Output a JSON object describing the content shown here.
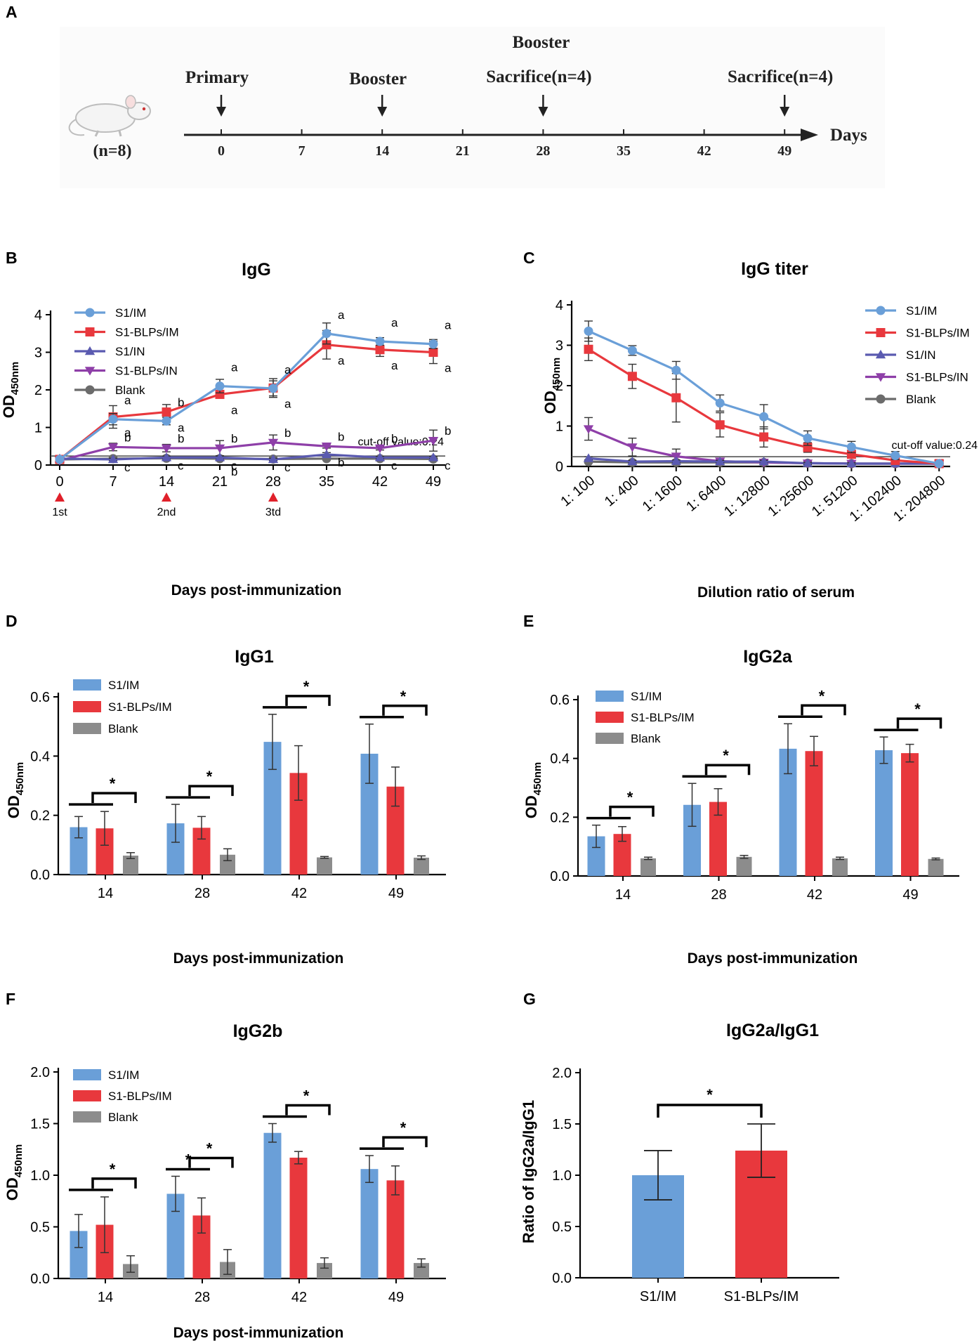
{
  "panels": {
    "A": "A",
    "B": "B",
    "C": "C",
    "D": "D",
    "E": "E",
    "F": "F",
    "G": "G"
  },
  "colors": {
    "s1_im": "#6a9fd8",
    "s1_blps_im": "#e8383d",
    "s1_in": "#5a5ab0",
    "s1_blps_in": "#8e3fa8",
    "blank": "#6b6b6b",
    "bar_blank": "#8c8c8c",
    "marker_red": "#e0202a"
  },
  "timeline": {
    "top_label": "Booster",
    "events": [
      {
        "label": "Primary",
        "day": 0
      },
      {
        "label": "Booster",
        "day": 14
      },
      {
        "label": "Sacrifice(n=4)",
        "day": 28
      },
      {
        "label": "Sacrifice(n=4)",
        "day": 49
      }
    ],
    "ticks": [
      "0",
      "7",
      "14",
      "21",
      "28",
      "35",
      "42",
      "49"
    ],
    "axis_label": "Days",
    "mouse_label": "(n=8)"
  },
  "chart_data": [
    {
      "id": "B",
      "type": "line",
      "title": "IgG",
      "xlabel": "Days  post-immunization",
      "ylabel_main": "OD",
      "ylabel_sub": "450nm",
      "categories": [
        "0",
        "7",
        "14",
        "21",
        "28",
        "35",
        "42",
        "49"
      ],
      "yticks": [
        "0",
        "1",
        "2",
        "3",
        "4"
      ],
      "ylim": [
        0,
        4
      ],
      "series": [
        {
          "name": "S1/IM",
          "color_key": "s1_im",
          "marker": "circle",
          "values": [
            0.15,
            1.22,
            1.17,
            2.1,
            2.04,
            3.5,
            3.29,
            3.22
          ],
          "errors": [
            0.03,
            0.15,
            0.1,
            0.18,
            0.2,
            0.28,
            0.1,
            0.12
          ],
          "letters": [
            "",
            "a",
            "b",
            "a",
            "a",
            "a",
            "a",
            "a"
          ]
        },
        {
          "name": "S1-BLPs/IM",
          "color_key": "s1_blps_im",
          "marker": "square",
          "values": [
            0.15,
            1.28,
            1.41,
            1.88,
            2.05,
            3.2,
            3.07,
            3.0
          ],
          "errors": [
            0.03,
            0.3,
            0.2,
            0.1,
            0.25,
            0.38,
            0.18,
            0.3
          ],
          "letters": [
            "",
            "a",
            "a",
            "a",
            "a",
            "a",
            "a",
            "a"
          ]
        },
        {
          "name": "S1/IN",
          "color_key": "s1_in",
          "marker": "triangle-up",
          "values": [
            0.17,
            0.15,
            0.2,
            0.2,
            0.15,
            0.28,
            0.2,
            0.2
          ],
          "errors": [
            0.02,
            0.03,
            0.04,
            0.04,
            0.03,
            0.05,
            0.03,
            0.03
          ],
          "letters": [
            "",
            "c",
            "c",
            "c",
            "c",
            "b",
            "c",
            "c"
          ]
        },
        {
          "name": "S1-BLPs/IN",
          "color_key": "s1_blps_in",
          "marker": "triangle-down",
          "values": [
            0.12,
            0.48,
            0.45,
            0.45,
            0.6,
            0.5,
            0.45,
            0.65
          ],
          "errors": [
            0.03,
            0.1,
            0.1,
            0.2,
            0.2,
            0.05,
            0.05,
            0.28
          ],
          "letters": [
            "",
            "b",
            "b",
            "b",
            "b",
            "b",
            "b",
            "b"
          ]
        },
        {
          "name": "Blank",
          "color_key": "blank",
          "marker": "circle",
          "values": [
            0.15,
            0.17,
            0.18,
            0.17,
            0.16,
            0.17,
            0.17,
            0.16
          ],
          "errors": [
            0.02,
            0.02,
            0.02,
            0.02,
            0.02,
            0.02,
            0.02,
            0.02
          ],
          "letters": [
            "",
            "",
            "",
            "b",
            "",
            "",
            "",
            ""
          ]
        }
      ],
      "cutoff": 0.24,
      "cutoff_text": "cut-off value:0.24",
      "immunizations": [
        "1st",
        "2nd",
        "3td"
      ]
    },
    {
      "id": "C",
      "type": "line",
      "title": "IgG titer",
      "xlabel": "Dilution ratio of serum",
      "ylabel_main": "OD",
      "ylabel_sub": "450nm",
      "categories": [
        "1: 100",
        "1: 400",
        "1: 1600",
        "1: 6400",
        "1: 12800",
        "1: 25600",
        "1: 51200",
        "1: 102400",
        "1: 204800"
      ],
      "yticks": [
        "0",
        "1",
        "2",
        "3",
        "4"
      ],
      "ylim": [
        0,
        4
      ],
      "series": [
        {
          "name": "S1/IM",
          "color_key": "s1_im",
          "marker": "circle",
          "values": [
            3.35,
            2.87,
            2.38,
            1.57,
            1.23,
            0.7,
            0.48,
            0.27,
            0.07
          ],
          "errors": [
            0.25,
            0.12,
            0.22,
            0.2,
            0.3,
            0.18,
            0.14,
            0.1,
            0.03
          ]
        },
        {
          "name": "S1-BLPs/IM",
          "color_key": "s1_blps_im",
          "marker": "square",
          "values": [
            2.9,
            2.23,
            1.7,
            1.03,
            0.73,
            0.47,
            0.3,
            0.15,
            0.07
          ],
          "errors": [
            0.28,
            0.3,
            0.6,
            0.3,
            0.25,
            0.12,
            0.06,
            0.06,
            0.03
          ]
        },
        {
          "name": "S1/IN",
          "color_key": "s1_in",
          "marker": "triangle-up",
          "values": [
            0.2,
            0.12,
            0.13,
            0.12,
            0.12,
            0.08,
            0.07,
            0.07,
            0.07
          ],
          "errors": [
            0.04,
            0.03,
            0.03,
            0.03,
            0.03,
            0.02,
            0.02,
            0.02,
            0.02
          ]
        },
        {
          "name": "S1-BLPs/IN",
          "color_key": "s1_blps_in",
          "marker": "triangle-down",
          "values": [
            0.93,
            0.48,
            0.25,
            0.13,
            0.1,
            0.08,
            0.07,
            0.07,
            0.07
          ],
          "errors": [
            0.28,
            0.22,
            0.18,
            0.05,
            0.04,
            0.03,
            0.02,
            0.02,
            0.02
          ]
        },
        {
          "name": "Blank",
          "color_key": "blank",
          "marker": "circle",
          "values": [
            0.12,
            0.1,
            0.1,
            0.1,
            0.1,
            0.08,
            0.07,
            0.07,
            0.07
          ],
          "errors": [
            0.02,
            0.02,
            0.02,
            0.02,
            0.02,
            0.02,
            0.02,
            0.02,
            0.02
          ]
        }
      ],
      "cutoff": 0.24,
      "cutoff_text": "cut-off value:0.24"
    },
    {
      "id": "D",
      "type": "bar",
      "title": "IgG1",
      "xlabel": "Days  post-immunization",
      "ylabel_main": "OD",
      "ylabel_sub": "450nm",
      "categories": [
        "14",
        "28",
        "42",
        "49"
      ],
      "yticks": [
        "0.0",
        "0.2",
        "0.4",
        "0.6"
      ],
      "ylim": [
        0,
        0.6
      ],
      "series": [
        {
          "name": "S1/IM",
          "color_key": "s1_im",
          "values": [
            0.16,
            0.173,
            0.448,
            0.408
          ],
          "errors": [
            0.036,
            0.064,
            0.093,
            0.1
          ]
        },
        {
          "name": "S1-BLPs/IM",
          "color_key": "s1_blps_im",
          "values": [
            0.156,
            0.158,
            0.343,
            0.297
          ],
          "errors": [
            0.057,
            0.038,
            0.092,
            0.066
          ]
        },
        {
          "name": "Blank",
          "color_key": "bar_blank",
          "values": [
            0.064,
            0.067,
            0.058,
            0.057
          ],
          "errors": [
            0.01,
            0.02,
            0.003,
            0.006
          ]
        }
      ],
      "significance": [
        {
          "category": 0,
          "text": "*"
        },
        {
          "category": 1,
          "text": "*"
        },
        {
          "category": 2,
          "text": "*"
        },
        {
          "category": 3,
          "text": "*"
        }
      ]
    },
    {
      "id": "E",
      "type": "bar",
      "title": "IgG2a",
      "xlabel": "Days  post-immunization",
      "ylabel_main": "OD",
      "ylabel_sub": "450nm",
      "categories": [
        "14",
        "28",
        "42",
        "49"
      ],
      "yticks": [
        "0.0",
        "0.2",
        "0.4",
        "0.6"
      ],
      "ylim": [
        0,
        0.6
      ],
      "series": [
        {
          "name": "S1/IM",
          "color_key": "s1_im",
          "values": [
            0.135,
            0.242,
            0.433,
            0.428
          ],
          "errors": [
            0.038,
            0.073,
            0.085,
            0.045
          ]
        },
        {
          "name": "S1-BLPs/IM",
          "color_key": "s1_blps_im",
          "values": [
            0.143,
            0.252,
            0.425,
            0.418
          ],
          "errors": [
            0.025,
            0.045,
            0.05,
            0.03
          ]
        },
        {
          "name": "Blank",
          "color_key": "bar_blank",
          "values": [
            0.06,
            0.065,
            0.06,
            0.058
          ],
          "errors": [
            0.004,
            0.005,
            0.004,
            0.003
          ]
        }
      ],
      "significance": [
        {
          "category": 0,
          "text": "*"
        },
        {
          "category": 1,
          "text": "*"
        },
        {
          "category": 2,
          "text": "*"
        },
        {
          "category": 3,
          "text": "*"
        }
      ]
    },
    {
      "id": "F",
      "type": "bar",
      "title": "IgG2b",
      "xlabel": "Days  post-immunization",
      "ylabel_main": "OD",
      "ylabel_sub": "450nm",
      "categories": [
        "14",
        "28",
        "42",
        "49"
      ],
      "yticks": [
        "0.0",
        "0.5",
        "1.0",
        "1.5",
        "2.0"
      ],
      "ylim": [
        0,
        2.0
      ],
      "series": [
        {
          "name": "S1/IM",
          "color_key": "s1_im",
          "values": [
            0.46,
            0.82,
            1.41,
            1.06
          ],
          "errors": [
            0.16,
            0.17,
            0.09,
            0.13
          ]
        },
        {
          "name": "S1-BLPs/IM",
          "color_key": "s1_blps_im",
          "values": [
            0.52,
            0.61,
            1.17,
            0.95
          ],
          "errors": [
            0.27,
            0.17,
            0.06,
            0.14
          ]
        },
        {
          "name": "Blank",
          "color_key": "bar_blank",
          "values": [
            0.14,
            0.16,
            0.15,
            0.15
          ],
          "errors": [
            0.08,
            0.12,
            0.05,
            0.04
          ]
        }
      ],
      "significance": [
        {
          "category": 0,
          "text": "*"
        },
        {
          "category": 1,
          "text": "*"
        },
        {
          "category": 1,
          "text": "*",
          "pair": "im"
        },
        {
          "category": 2,
          "text": "*"
        },
        {
          "category": 3,
          "text": "*"
        }
      ]
    },
    {
      "id": "G",
      "type": "bar",
      "title": "IgG2a/IgG1",
      "xlabel": "",
      "ylabel_main": "Ratio of IgG2a/IgG1",
      "categories": [
        "S1/IM",
        "S1-BLPs/IM"
      ],
      "yticks": [
        "0.0",
        "0.5",
        "1.0",
        "1.5",
        "2.0"
      ],
      "ylim": [
        0,
        2.0
      ],
      "values": [
        1.0,
        1.24
      ],
      "errors": [
        0.24,
        0.26
      ],
      "color_keys": [
        "s1_im",
        "s1_blps_im"
      ],
      "significance": "*"
    }
  ]
}
